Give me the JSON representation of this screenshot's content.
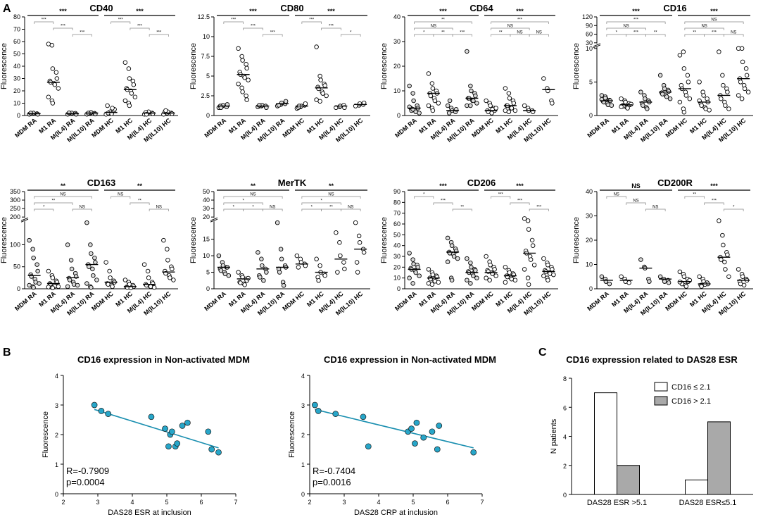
{
  "panel_letters": [
    "A",
    "B",
    "C"
  ],
  "chart_data": [
    {
      "type": "scatter",
      "name": "CD40",
      "title": "CD40",
      "ylabel": "Fluorescence",
      "ylim": [
        0,
        80
      ],
      "yticks": [
        0,
        10,
        20,
        30,
        40,
        50,
        60,
        70,
        80
      ],
      "categories": [
        "MDM RA",
        "M1 RA",
        "M(IL4) RA",
        "M(IL10) RA",
        "MDM HC",
        "M1 HC",
        "M(IL4) HC",
        "M(IL10) HC"
      ],
      "medians": [
        1.5,
        27,
        1.5,
        2,
        2.5,
        21,
        2,
        2
      ],
      "points": [
        [
          1,
          1.5,
          2,
          1.5,
          1,
          2
        ],
        [
          58,
          57,
          38,
          35,
          30,
          28,
          27,
          26,
          25,
          22,
          15,
          12,
          10
        ],
        [
          1,
          1.5,
          2,
          1.8,
          1,
          2.2
        ],
        [
          1,
          2,
          2.5,
          1.8,
          1.2,
          2
        ],
        [
          1,
          2,
          3,
          4,
          5,
          8,
          2,
          1.5,
          6
        ],
        [
          43,
          38,
          30,
          28,
          25,
          22,
          21,
          20,
          18,
          15,
          12,
          10,
          8
        ],
        [
          1,
          2,
          3,
          2,
          1.5,
          2.5,
          1
        ],
        [
          1,
          2,
          3,
          2,
          1.5,
          3,
          4
        ]
      ],
      "significance": {
        "group_RA": "***",
        "group_HC": "***",
        "pairs_RA": [
          "***",
          "***",
          "***"
        ],
        "pairs_HC": [
          "***",
          "***",
          "***"
        ]
      }
    },
    {
      "type": "scatter",
      "name": "CD80",
      "title": "CD80",
      "ylabel": "Fluorescence",
      "ylim": [
        0,
        12.5
      ],
      "yticks": [
        0.0,
        2.5,
        5.0,
        7.5,
        10.0,
        12.5
      ],
      "categories": [
        "MDM RA",
        "M1 RA",
        "M(IL4) RA",
        "M(IL10) RA",
        "MDM HC",
        "M1 HC",
        "M(IL4) HC",
        "M(IL10) HC"
      ],
      "medians": [
        1.2,
        5.2,
        1.2,
        1.5,
        1.2,
        3.5,
        1.2,
        1.4
      ],
      "points": [
        [
          1,
          1.2,
          1.3,
          1.1,
          1.4,
          1.2,
          1.0
        ],
        [
          8.5,
          7.5,
          7,
          6.5,
          6,
          5.5,
          5.2,
          5,
          4.8,
          4.5,
          4,
          3.5,
          3,
          2.5,
          2
        ],
        [
          1.1,
          1.2,
          1.3,
          1.2,
          1.0,
          1.3
        ],
        [
          1.2,
          1.4,
          1.6,
          1.5,
          1.8,
          1.3
        ],
        [
          0.9,
          1.1,
          1.2,
          1.3,
          1.5,
          1.0,
          1.2
        ],
        [
          8.7,
          5,
          4.5,
          4,
          3.8,
          3.6,
          3.4,
          3,
          2.8,
          2.5,
          2,
          1.8
        ],
        [
          1,
          1.1,
          1.2,
          1.3,
          1.0
        ],
        [
          1.2,
          1.3,
          1.5,
          1.4,
          1.6
        ]
      ],
      "significance": {
        "group_RA": "***",
        "group_HC": "***",
        "pairs_RA": [
          "***",
          "***",
          "***"
        ],
        "pairs_HC": [
          "***",
          "***",
          "*"
        ]
      }
    },
    {
      "type": "scatter",
      "name": "CD64",
      "title": "CD64",
      "ylabel": "Fluorescence",
      "ylim": [
        0,
        40
      ],
      "yticks": [
        0,
        10,
        20,
        30,
        40
      ],
      "categories": [
        "MDM RA",
        "M1 RA",
        "M(IL4) RA",
        "M(IL10) RA",
        "MDM HC",
        "M1 HC",
        "M(IL4) HC",
        "M(IL10) HC"
      ],
      "medians": [
        3,
        9,
        2,
        7,
        2,
        4,
        2,
        10.5
      ],
      "points": [
        [
          12,
          9,
          6,
          4,
          3,
          3,
          2,
          2,
          1.5,
          1,
          3.5,
          2.5
        ],
        [
          17,
          13,
          11,
          10,
          9,
          9,
          8,
          7,
          6,
          5,
          4,
          3,
          2
        ],
        [
          4,
          3,
          2,
          1.5,
          2.5,
          1,
          6
        ],
        [
          26,
          12,
          10,
          9,
          8,
          7,
          7,
          6,
          6,
          5,
          4,
          4
        ],
        [
          6,
          5,
          4,
          3,
          2,
          2,
          1.5,
          1,
          2.5,
          3
        ],
        [
          11,
          9,
          7,
          6,
          5,
          4,
          4,
          3,
          3,
          2,
          2,
          1.5
        ],
        [
          4,
          3,
          2,
          2,
          1.5
        ],
        [
          15,
          11,
          10,
          6,
          5
        ]
      ],
      "significance": {
        "group_RA": "***",
        "group_HC": "***",
        "pairs_RA": [
          "**",
          "NS",
          "*",
          "**",
          "***"
        ],
        "pairs_HC": [
          "***",
          "NS",
          "**",
          "NS",
          "NS"
        ]
      }
    },
    {
      "type": "scatter",
      "name": "CD16",
      "title": "CD16",
      "ylabel": "Fluorescence",
      "ylim": [
        0,
        10
      ],
      "yticks": [
        0,
        5,
        10
      ],
      "upper_ticks": [
        30,
        60,
        90,
        120
      ],
      "categories": [
        "MDM RA",
        "M1 RA",
        "M(IL4) RA",
        "M(IL10) RA",
        "MDM HC",
        "M1 HC",
        "M(IL4) HC",
        "M(IL10) HC"
      ],
      "medians": [
        2.2,
        1.6,
        2.0,
        3.5,
        4.0,
        2.0,
        3.0,
        5.5
      ],
      "points": [
        [
          3,
          2.8,
          2.5,
          2.3,
          2.2,
          2.1,
          2,
          1.8,
          1.6,
          1.5,
          2.4,
          2.6
        ],
        [
          2.5,
          2.2,
          2,
          1.8,
          1.6,
          1.5,
          1.4,
          1.2,
          1.1,
          1.7,
          1.3
        ],
        [
          3.5,
          3,
          2.5,
          2.2,
          2,
          1.8,
          1.5,
          1.2,
          1
        ],
        [
          6,
          4.5,
          4,
          3.8,
          3.6,
          3.4,
          3.2,
          3,
          2.8,
          2.5
        ],
        [
          9,
          9.5,
          7,
          6,
          5,
          4.5,
          4,
          3.5,
          3,
          2.5,
          2,
          1,
          0.5
        ],
        [
          5,
          3.5,
          3,
          2.5,
          2,
          1.8,
          1.5,
          1.2,
          1,
          0.8,
          2.2
        ],
        [
          9.5,
          6,
          4.5,
          4,
          3.5,
          3,
          2.5,
          2,
          1.5,
          1
        ],
        [
          10.5,
          10,
          8,
          7,
          6,
          5.5,
          5,
          4.5,
          4,
          3.5,
          3,
          2.5
        ]
      ],
      "significance": {
        "group_RA": "***",
        "group_HC": "***",
        "pairs_RA": [
          "***",
          "NS",
          "*",
          "***",
          "**"
        ],
        "pairs_HC": [
          "NS",
          "NS",
          "**",
          "***",
          "NS"
        ]
      }
    },
    {
      "type": "scatter",
      "name": "CD163",
      "title": "CD163",
      "ylabel": "Fluorescence",
      "ylim": [
        0,
        150
      ],
      "yticks": [
        0,
        50,
        100
      ],
      "upper_ticks": [
        200,
        250,
        300,
        350
      ],
      "categories": [
        "MDM RA",
        "M1 RA",
        "M(IL4) RA",
        "M(IL10) RA",
        "MDM HC",
        "M1 HC",
        "M(IL4) HC",
        "M(IL10) HC"
      ],
      "medians": [
        30,
        12,
        25,
        55,
        15,
        5,
        10,
        38
      ],
      "points": [
        [
          110,
          90,
          70,
          55,
          40,
          32,
          28,
          22,
          15,
          12,
          8,
          5,
          3
        ],
        [
          40,
          30,
          25,
          18,
          15,
          12,
          10,
          8,
          6,
          5,
          4,
          3,
          2
        ],
        [
          100,
          65,
          45,
          35,
          28,
          24,
          20,
          15,
          10,
          8,
          5
        ],
        [
          165,
          100,
          80,
          70,
          60,
          55,
          50,
          45,
          30,
          20,
          12,
          5,
          3
        ],
        [
          60,
          40,
          25,
          18,
          15,
          12,
          10,
          8,
          5
        ],
        [
          20,
          15,
          10,
          8,
          5,
          4,
          3,
          2
        ],
        [
          55,
          40,
          25,
          15,
          12,
          10,
          8,
          6,
          5,
          3
        ],
        [
          110,
          90,
          65,
          50,
          45,
          40,
          35,
          30,
          25,
          20
        ]
      ],
      "significance": {
        "group_RA": "**",
        "group_HC": "**",
        "pairs_RA": [
          "NS",
          "**",
          "*",
          "NS"
        ],
        "pairs_HC": [
          "NS",
          "**",
          "NS"
        ]
      }
    },
    {
      "type": "scatter",
      "name": "MerTK",
      "title": "MerTK",
      "ylabel": "Fluorescence",
      "ylim": [
        0,
        20
      ],
      "yticks": [
        0,
        5,
        10,
        15
      ],
      "upper_ticks": [
        20,
        30,
        40,
        50
      ],
      "categories": [
        "MDM RA",
        "M1 RA",
        "M(IL4) RA",
        "M(IL10) RA",
        "MDM HC",
        "M1 HC",
        "M(IL4) HC",
        "M(IL10) HC"
      ],
      "medians": [
        6.5,
        3,
        6,
        6.5,
        7.5,
        5,
        9,
        12
      ],
      "points": [
        [
          10,
          8,
          7,
          6.5,
          6.5,
          6,
          5.5,
          5,
          4.5,
          4
        ],
        [
          5,
          4,
          3.5,
          3,
          2.5,
          2,
          1.8,
          1.5,
          1.2,
          3.2
        ],
        [
          11,
          9,
          7,
          6,
          5,
          4,
          3.5,
          2.5
        ],
        [
          20,
          12,
          9,
          7,
          6.5,
          6,
          5,
          2,
          1
        ],
        [
          10,
          9,
          8,
          7.5,
          7,
          6.5
        ],
        [
          9,
          7,
          5,
          4.5,
          4,
          3.5,
          2.5
        ],
        [
          17,
          14,
          10,
          8,
          6,
          5
        ],
        [
          23,
          16,
          14,
          12,
          11,
          8,
          5
        ]
      ],
      "significance": {
        "group_RA": "**",
        "group_HC": "**",
        "pairs_RA": [
          "NS",
          "*",
          "*",
          "*",
          "NS"
        ],
        "pairs_HC": [
          "NS",
          "*",
          "*",
          "**",
          "NS"
        ]
      }
    },
    {
      "type": "scatter",
      "name": "CD206",
      "title": "CD206",
      "ylabel": "Fluorescence",
      "ylim": [
        0,
        90
      ],
      "yticks": [
        0,
        10,
        20,
        30,
        40,
        50,
        60,
        70,
        80,
        90
      ],
      "categories": [
        "MDM RA",
        "M1 RA",
        "M(IL4) RA",
        "M(IL10) RA",
        "MDM HC",
        "M1 HC",
        "M(IL4) HC",
        "M(IL10) HC"
      ],
      "medians": [
        18,
        10,
        34,
        15,
        15,
        12,
        33,
        16
      ],
      "points": [
        [
          33,
          27,
          23,
          22,
          20,
          19,
          18,
          17,
          15,
          12,
          10,
          5
        ],
        [
          18,
          15,
          13,
          12,
          11,
          10,
          9,
          8,
          7,
          6,
          5,
          4
        ],
        [
          47,
          43,
          40,
          37,
          35,
          34,
          33,
          32,
          30,
          28,
          25,
          10,
          8
        ],
        [
          28,
          24,
          20,
          18,
          17,
          16,
          15,
          14,
          12,
          10,
          8,
          5
        ],
        [
          30,
          25,
          22,
          20,
          18,
          17,
          16,
          15,
          14,
          12,
          10,
          8
        ],
        [
          20,
          17,
          15,
          14,
          13,
          12,
          11,
          10,
          9,
          8,
          6
        ],
        [
          65,
          63,
          55,
          45,
          40,
          35,
          33,
          30,
          27,
          22,
          18,
          10,
          4
        ],
        [
          28,
          24,
          22,
          20,
          18,
          17,
          16,
          15,
          14,
          13,
          12,
          10,
          8
        ]
      ],
      "significance": {
        "group_RA": "***",
        "group_HC": "***",
        "pairs_RA": [
          "*",
          "***",
          "**"
        ],
        "pairs_HC": [
          "***",
          "***",
          "***"
        ]
      }
    },
    {
      "type": "scatter",
      "name": "CD200R",
      "title": "CD200R",
      "ylabel": "Fluorescence",
      "ylim": [
        0,
        40
      ],
      "yticks": [
        0,
        10,
        20,
        30,
        40
      ],
      "categories": [
        "MDM RA",
        "M1 RA",
        "M(IL4) RA",
        "M(IL10) RA",
        "MDM HC",
        "M1 HC",
        "M(IL4) HC",
        "M(IL10) HC"
      ],
      "medians": [
        3.5,
        3.5,
        8.5,
        4,
        3,
        2,
        13,
        3.5
      ],
      "points": [
        [
          5,
          4,
          3,
          2
        ],
        [
          5,
          4,
          3,
          2.5
        ],
        [
          12,
          9,
          8.5,
          4,
          3
        ],
        [
          5,
          4,
          3,
          3.5,
          2.5
        ],
        [
          7,
          6,
          5,
          4,
          3,
          2.5,
          2,
          1.5,
          1,
          3.5,
          2.8
        ],
        [
          5,
          4,
          3,
          2.5,
          2,
          1.5,
          1,
          1.8
        ],
        [
          28,
          22,
          18,
          15,
          14,
          13,
          12,
          11,
          8,
          5
        ],
        [
          8,
          6,
          5,
          4,
          3.5,
          3,
          2,
          1.5
        ]
      ],
      "significance": {
        "group_RA": "NS",
        "group_HC": "***",
        "pairs_RA": [
          "NS",
          "NS",
          "NS"
        ],
        "pairs_HC": [
          "**",
          "***",
          "*"
        ]
      }
    },
    {
      "type": "scatter",
      "name": "B-left",
      "title": "CD16 expression in Non-activated MDM",
      "xlabel": "DAS28 ESR at inclusion",
      "ylabel": "Fluorescence",
      "xlim": [
        2,
        7
      ],
      "ylim": [
        0,
        4
      ],
      "xticks": [
        2,
        3,
        4,
        5,
        6,
        7
      ],
      "yticks": [
        0,
        1,
        2,
        3,
        4
      ],
      "x": [
        2.9,
        3.1,
        3.3,
        4.55,
        4.95,
        5.05,
        5.1,
        5.15,
        5.25,
        5.3,
        5.45,
        5.6,
        6.2,
        6.3,
        6.5
      ],
      "y": [
        3.0,
        2.8,
        2.7,
        2.6,
        2.2,
        1.6,
        2.0,
        2.1,
        1.6,
        1.7,
        2.3,
        2.4,
        2.1,
        1.5,
        1.4
      ],
      "fit": [
        [
          2.9,
          2.85
        ],
        [
          6.5,
          1.55
        ]
      ],
      "r_text": "R=-0.7909",
      "p_text": "p=0.0004"
    },
    {
      "type": "scatter",
      "name": "B-right",
      "title": "CD16 expression in Non-activated MDM",
      "xlabel": "DAS28 CRP at inclusion",
      "ylabel": "Fluorescence",
      "xlim": [
        2,
        7
      ],
      "ylim": [
        0,
        4
      ],
      "xticks": [
        2,
        3,
        4,
        5,
        6,
        7
      ],
      "yticks": [
        0,
        1,
        2,
        3,
        4
      ],
      "x": [
        2.15,
        2.25,
        2.75,
        3.55,
        3.7,
        4.85,
        4.95,
        5.05,
        5.1,
        5.3,
        5.55,
        5.7,
        5.75,
        6.75
      ],
      "y": [
        3.0,
        2.8,
        2.7,
        2.6,
        1.6,
        2.1,
        2.2,
        1.7,
        2.4,
        1.9,
        2.1,
        1.5,
        2.3,
        1.4
      ],
      "fit": [
        [
          2.15,
          2.85
        ],
        [
          6.75,
          1.55
        ]
      ],
      "r_text": "R=-0.7404",
      "p_text": "p=0.0016"
    },
    {
      "type": "bar",
      "name": "C",
      "title": "CD16 expression related to DAS28 ESR",
      "ylabel": "N patients",
      "categories": [
        "DAS28 ESR >5.1",
        "DAS28 ESR≤5.1"
      ],
      "series": [
        {
          "name": "CD16 ≤ 2.1",
          "values": [
            7,
            1
          ],
          "color": "#ffffff"
        },
        {
          "name": "CD16 > 2.1",
          "values": [
            2,
            5
          ],
          "color": "#a9a9a9"
        }
      ],
      "ylim": [
        0,
        8
      ],
      "yticks": [
        0,
        2,
        4,
        6,
        8
      ]
    }
  ]
}
